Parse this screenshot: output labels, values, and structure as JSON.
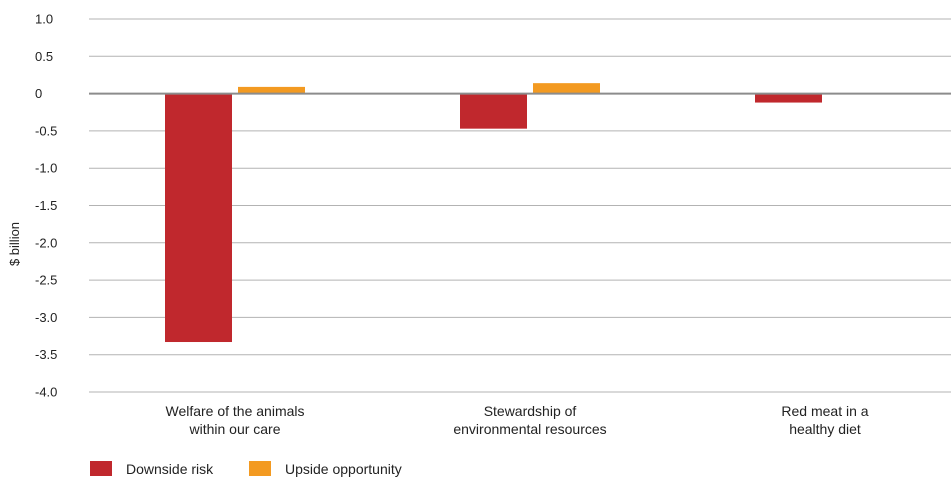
{
  "chart_data": {
    "type": "bar",
    "title": "",
    "xlabel": "",
    "ylabel": "$ billion",
    "ylim": [
      -4.0,
      1.0
    ],
    "yticks": [
      "1.0",
      "0.5",
      "0",
      "-0.5",
      "-1.0",
      "-1.5",
      "-2.0",
      "-2.5",
      "-3.0",
      "-3.5",
      "-4.0"
    ],
    "categories": [
      [
        "Welfare of the animals",
        "within our care"
      ],
      [
        "Stewardship of",
        "environmental resources"
      ],
      [
        "Red meat in a",
        "healthy diet"
      ]
    ],
    "series": [
      {
        "name": "Downside risk",
        "color": "#c0282d",
        "values": [
          -3.33,
          -0.47,
          -0.12
        ]
      },
      {
        "name": "Upside opportunity",
        "color": "#f39a21",
        "values": [
          0.09,
          0.14,
          0.0
        ]
      }
    ],
    "grid": true,
    "legend_position": "bottom-left"
  }
}
